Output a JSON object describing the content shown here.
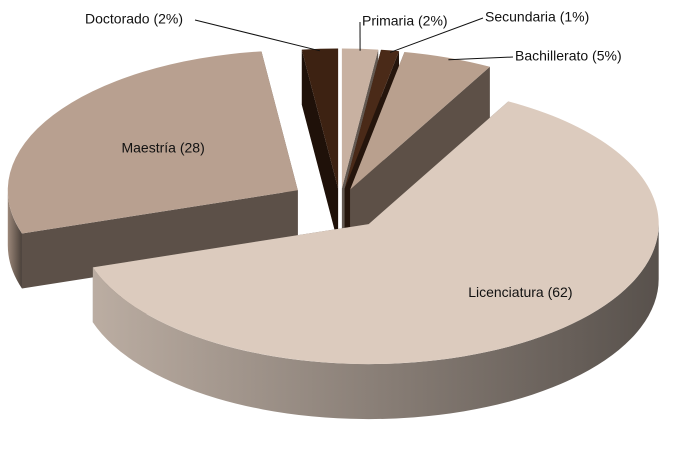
{
  "chart_data": {
    "type": "pie3d",
    "value_labels": [
      "Primaria (2%)",
      "Secundaria (1%)",
      "Bachillerato (5%)",
      "Licenciatura (62)",
      "Maestría (28)",
      "Doctorado (2%)"
    ],
    "values": [
      2,
      1,
      5,
      62,
      28,
      2
    ],
    "colors": [
      "#c8b1a1",
      "#4a2a18",
      "#b9a08e",
      "#dccbbe",
      "#b8a090",
      "#3d2212"
    ]
  }
}
